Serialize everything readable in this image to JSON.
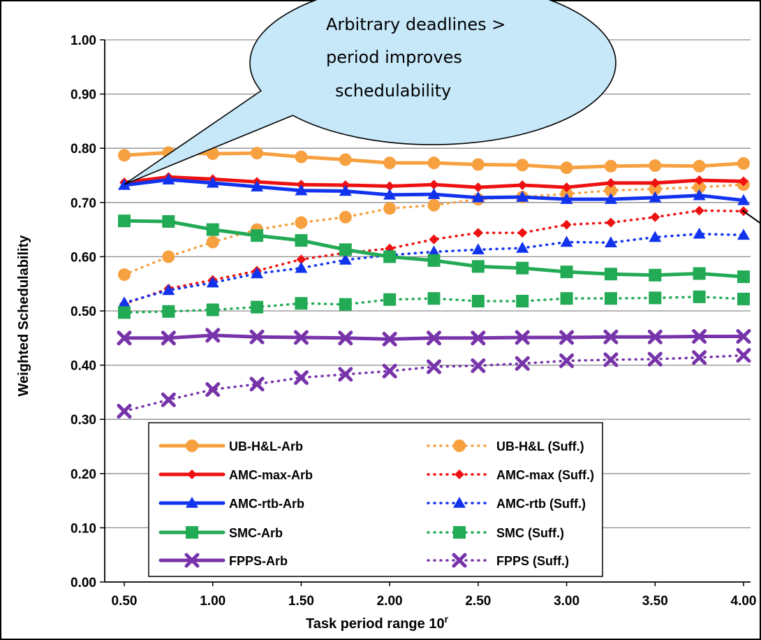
{
  "chart_data": {
    "type": "line",
    "title": "",
    "xlabel": "Task period range 10",
    "xlabel_superscript": "r",
    "ylabel": "Weighted Schedulability",
    "xlim": [
      0.5,
      4.0
    ],
    "ylim": [
      0.0,
      1.0
    ],
    "x_ticks": [
      "0.50",
      "1.00",
      "1.50",
      "2.00",
      "2.50",
      "3.00",
      "3.50",
      "4.00"
    ],
    "y_ticks": [
      "0.00",
      "0.10",
      "0.20",
      "0.30",
      "0.40",
      "0.50",
      "0.60",
      "0.70",
      "0.80",
      "0.90",
      "1.00"
    ],
    "grid": "horizontal",
    "legend_position": "bottom-center",
    "x": [
      0.5,
      0.75,
      1.0,
      1.25,
      1.5,
      1.75,
      2.0,
      2.25,
      2.5,
      2.75,
      3.0,
      3.25,
      3.5,
      3.75,
      4.0
    ],
    "series": [
      {
        "name": "UB-H&L-Arb",
        "color": "#f7a040",
        "marker": "circle",
        "dashed": false,
        "values": [
          0.787,
          0.792,
          0.79,
          0.791,
          0.784,
          0.779,
          0.773,
          0.773,
          0.77,
          0.769,
          0.764,
          0.767,
          0.768,
          0.767,
          0.772
        ]
      },
      {
        "name": "UB-H&L (Suff.)",
        "color": "#f7a040",
        "marker": "circle",
        "dashed": true,
        "values": [
          0.567,
          0.6,
          0.627,
          0.65,
          0.663,
          0.673,
          0.689,
          0.695,
          0.706,
          0.71,
          0.716,
          0.722,
          0.725,
          0.728,
          0.733
        ]
      },
      {
        "name": "AMC-max-Arb",
        "color": "#ee1111",
        "marker": "diamond",
        "dashed": false,
        "values": [
          0.737,
          0.747,
          0.743,
          0.738,
          0.733,
          0.732,
          0.73,
          0.733,
          0.728,
          0.732,
          0.728,
          0.736,
          0.736,
          0.741,
          0.739
        ]
      },
      {
        "name": "AMC-max (Suff.)",
        "color": "#ee1111",
        "marker": "diamond",
        "dashed": true,
        "values": [
          0.513,
          0.541,
          0.557,
          0.574,
          0.595,
          0.607,
          0.615,
          0.632,
          0.644,
          0.644,
          0.659,
          0.663,
          0.673,
          0.685,
          0.684
        ]
      },
      {
        "name": "AMC-rtb-Arb",
        "color": "#1133ee",
        "marker": "triangle",
        "dashed": false,
        "values": [
          0.732,
          0.742,
          0.736,
          0.729,
          0.722,
          0.721,
          0.714,
          0.715,
          0.709,
          0.71,
          0.706,
          0.706,
          0.709,
          0.713,
          0.704
        ]
      },
      {
        "name": "AMC-rtb (Suff.)",
        "color": "#1133ee",
        "marker": "triangle",
        "dashed": true,
        "values": [
          0.515,
          0.538,
          0.552,
          0.569,
          0.579,
          0.594,
          0.603,
          0.609,
          0.613,
          0.616,
          0.627,
          0.626,
          0.636,
          0.642,
          0.64
        ]
      },
      {
        "name": "SMC-Arb",
        "color": "#22aa55",
        "marker": "square",
        "dashed": false,
        "values": [
          0.666,
          0.665,
          0.65,
          0.639,
          0.63,
          0.613,
          0.6,
          0.593,
          0.582,
          0.579,
          0.572,
          0.568,
          0.566,
          0.569,
          0.563
        ]
      },
      {
        "name": "SMC (Suff.)",
        "color": "#22aa55",
        "marker": "square",
        "dashed": true,
        "values": [
          0.497,
          0.499,
          0.502,
          0.507,
          0.514,
          0.512,
          0.521,
          0.523,
          0.518,
          0.518,
          0.523,
          0.523,
          0.524,
          0.526,
          0.522
        ]
      },
      {
        "name": "FPPS-Arb",
        "color": "#7733aa",
        "marker": "x",
        "dashed": false,
        "values": [
          0.45,
          0.45,
          0.455,
          0.452,
          0.451,
          0.45,
          0.448,
          0.45,
          0.45,
          0.451,
          0.451,
          0.452,
          0.452,
          0.453,
          0.453
        ]
      },
      {
        "name": "FPPS (Suff.)",
        "color": "#7733aa",
        "marker": "x",
        "dashed": true,
        "values": [
          0.315,
          0.336,
          0.355,
          0.365,
          0.377,
          0.383,
          0.389,
          0.397,
          0.399,
          0.403,
          0.408,
          0.41,
          0.411,
          0.414,
          0.418
        ]
      }
    ],
    "annotation": {
      "lines": [
        "Arbitrary deadlines >",
        "period improves",
        "schedulability"
      ],
      "fill": "#c7e8f9"
    }
  }
}
